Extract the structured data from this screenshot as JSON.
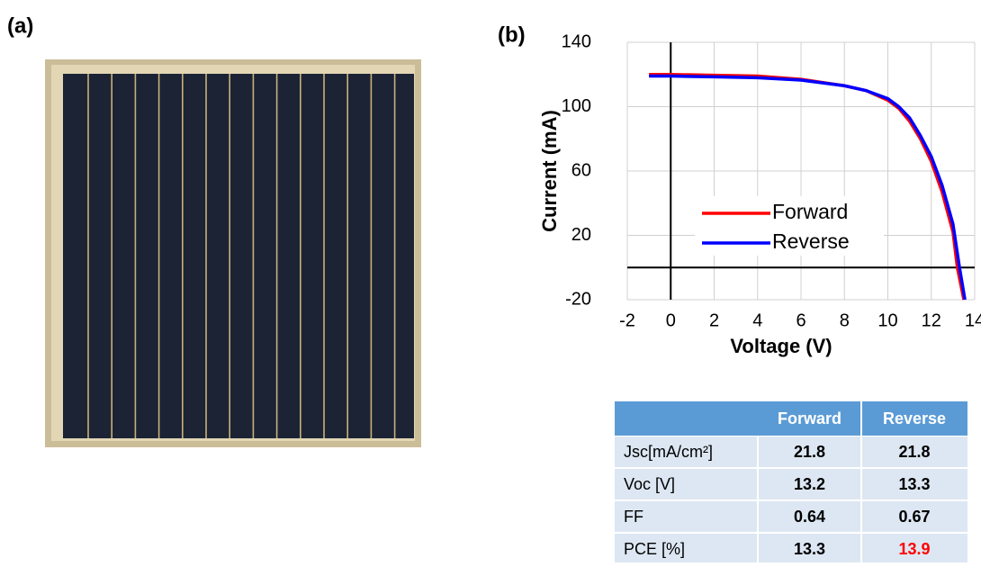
{
  "panel_labels": [
    "(a)",
    "(b)"
  ],
  "chart_data": {
    "type": "line",
    "xlabel": "Voltage (V)",
    "ylabel": "Current (mA)",
    "xlim": [
      -2,
      14
    ],
    "xticks": [
      -2,
      0,
      2,
      4,
      6,
      8,
      10,
      12,
      14
    ],
    "ylim": [
      -20,
      140
    ],
    "yticks": [
      -20,
      20,
      60,
      100,
      140
    ],
    "grid": true,
    "legend": "center",
    "series": [
      {
        "name": "Forward",
        "color": "#ff0000",
        "x": [
          -1,
          0,
          2,
          4,
          6,
          8,
          9,
          10,
          10.5,
          11,
          11.5,
          12,
          12.5,
          13,
          13.2,
          13.5
        ],
        "values": [
          120,
          120,
          119.5,
          119,
          117,
          113,
          110,
          104,
          99,
          91,
          80,
          66,
          47,
          22,
          0,
          -20
        ]
      },
      {
        "name": "Reverse",
        "color": "#0000ff",
        "x": [
          -1,
          0,
          2,
          4,
          6,
          8,
          9,
          10,
          10.5,
          11,
          11.5,
          12,
          12.5,
          13,
          13.3,
          13.55
        ],
        "values": [
          119,
          119,
          118.5,
          118,
          116.5,
          113,
          110,
          105,
          100,
          93,
          82,
          69,
          51,
          27,
          0,
          -20
        ]
      }
    ]
  },
  "table": {
    "header": [
      "Forward",
      "Reverse"
    ],
    "rows": [
      [
        "Jsc[mA/cm²]",
        21.8,
        21.8
      ],
      [
        "Voc [V]",
        13.2,
        13.3
      ],
      [
        "FF",
        0.64,
        0.67
      ],
      [
        "PCE [%]",
        13.3,
        13.9
      ]
    ],
    "highlight": {
      "row": 3,
      "col": 2,
      "color": "#ff0000"
    }
  }
}
